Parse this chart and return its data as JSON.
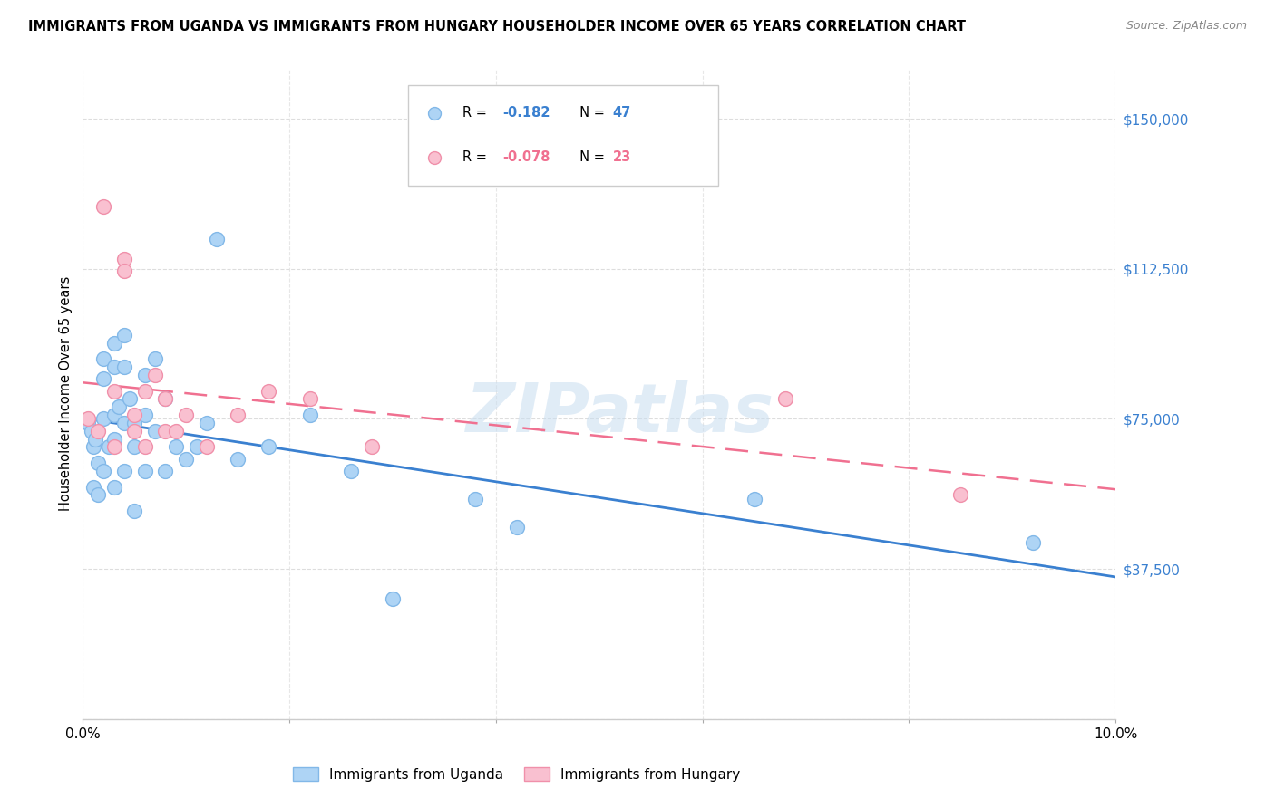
{
  "title": "IMMIGRANTS FROM UGANDA VS IMMIGRANTS FROM HUNGARY HOUSEHOLDER INCOME OVER 65 YEARS CORRELATION CHART",
  "source": "Source: ZipAtlas.com",
  "ylabel": "Householder Income Over 65 years",
  "xlim": [
    0.0,
    0.1
  ],
  "ylim": [
    0,
    162500
  ],
  "yticks": [
    0,
    37500,
    75000,
    112500,
    150000
  ],
  "ytick_labels": [
    "",
    "$37,500",
    "$75,000",
    "$112,500",
    "$150,000"
  ],
  "xticks": [
    0.0,
    0.02,
    0.04,
    0.06,
    0.08,
    0.1
  ],
  "xtick_labels": [
    "0.0%",
    "",
    "",
    "",
    "",
    "10.0%"
  ],
  "legend_r_uganda": "R =  -0.182",
  "legend_n_uganda": "N = 47",
  "legend_r_hungary": "R =  -0.078",
  "legend_n_hungary": "N = 23",
  "uganda_color": "#aed4f5",
  "hungary_color": "#f9c0d0",
  "uganda_edge": "#82b8e8",
  "hungary_edge": "#f090aa",
  "trend_uganda_color": "#3a80d0",
  "trend_hungary_color": "#f07090",
  "watermark": "ZIPatlas",
  "uganda_label": "Immigrants from Uganda",
  "hungary_label": "Immigrants from Hungary",
  "uganda_x": [
    0.0005,
    0.0008,
    0.001,
    0.001,
    0.0012,
    0.0015,
    0.0015,
    0.002,
    0.002,
    0.002,
    0.002,
    0.0025,
    0.003,
    0.003,
    0.003,
    0.003,
    0.003,
    0.0035,
    0.004,
    0.004,
    0.004,
    0.004,
    0.0045,
    0.005,
    0.005,
    0.005,
    0.006,
    0.006,
    0.006,
    0.007,
    0.007,
    0.008,
    0.008,
    0.009,
    0.01,
    0.011,
    0.012,
    0.013,
    0.015,
    0.018,
    0.022,
    0.026,
    0.03,
    0.038,
    0.042,
    0.065,
    0.092
  ],
  "uganda_y": [
    74000,
    72000,
    68000,
    58000,
    70000,
    64000,
    56000,
    90000,
    85000,
    75000,
    62000,
    68000,
    94000,
    88000,
    76000,
    70000,
    58000,
    78000,
    96000,
    88000,
    74000,
    62000,
    80000,
    74000,
    68000,
    52000,
    86000,
    76000,
    62000,
    90000,
    72000,
    80000,
    62000,
    68000,
    65000,
    68000,
    74000,
    120000,
    65000,
    68000,
    76000,
    62000,
    30000,
    55000,
    48000,
    55000,
    44000
  ],
  "hungary_x": [
    0.0005,
    0.0015,
    0.002,
    0.003,
    0.003,
    0.004,
    0.004,
    0.005,
    0.005,
    0.006,
    0.006,
    0.007,
    0.008,
    0.008,
    0.009,
    0.01,
    0.012,
    0.015,
    0.018,
    0.022,
    0.028,
    0.068,
    0.085
  ],
  "hungary_y": [
    75000,
    72000,
    128000,
    82000,
    68000,
    115000,
    112000,
    76000,
    72000,
    82000,
    68000,
    86000,
    80000,
    72000,
    72000,
    76000,
    68000,
    76000,
    82000,
    80000,
    68000,
    80000,
    56000
  ]
}
